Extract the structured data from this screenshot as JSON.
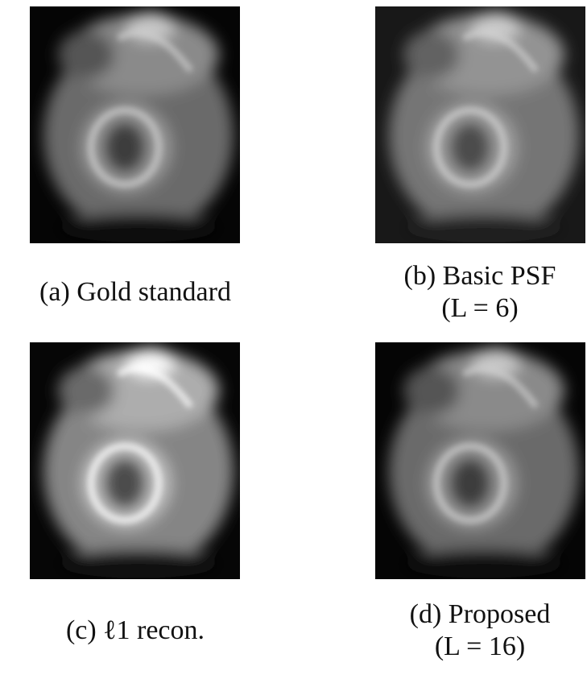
{
  "figure": {
    "panels": [
      {
        "caption": [
          "(a) Gold standard"
        ]
      },
      {
        "caption": [
          "(b) Basic PSF",
          "(L = 6)"
        ]
      },
      {
        "caption": [
          "(c) ℓ1 recon."
        ]
      },
      {
        "caption": [
          "(d) Proposed",
          "(L = 16)"
        ]
      }
    ]
  }
}
